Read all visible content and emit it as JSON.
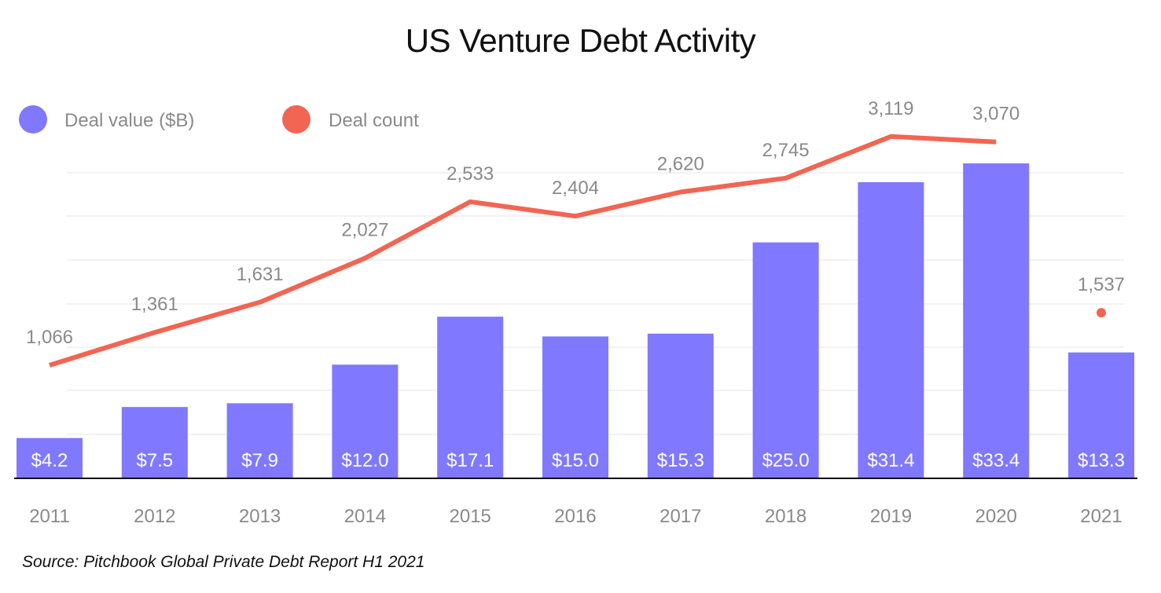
{
  "chart_data": {
    "type": "bar",
    "title": "US Venture Debt Activity",
    "categories": [
      "2011",
      "2012",
      "2013",
      "2014",
      "2015",
      "2016",
      "2017",
      "2018",
      "2019",
      "2020",
      "2021"
    ],
    "series": [
      {
        "name": "Deal value ($B)",
        "kind": "bar",
        "color": "#8079FF",
        "values": [
          4.2,
          7.5,
          7.9,
          12.0,
          17.1,
          15.0,
          15.3,
          25.0,
          31.4,
          33.4,
          13.3
        ],
        "labels": [
          "$4.2",
          "$7.5",
          "$7.9",
          "$12.0",
          "$17.1",
          "$15.0",
          "$15.3",
          "$25.0",
          "$31.4",
          "$33.4",
          "$13.3"
        ]
      },
      {
        "name": "Deal count",
        "kind": "line",
        "color": "#F26552",
        "values": [
          1066,
          1361,
          1631,
          2027,
          2533,
          2404,
          2620,
          2745,
          3119,
          3070,
          1537
        ],
        "labels": [
          "1,066",
          "1,361",
          "1,631",
          "2,027",
          "2,533",
          "2,404",
          "2,620",
          "2,745",
          "3,119",
          "3,070",
          "1,537"
        ],
        "line_through": 10,
        "dot_only": [
          10
        ]
      }
    ],
    "legend_placement": "top-left",
    "grid": true,
    "xlabel": "",
    "ylabel": ""
  },
  "source": "Source: Pitchbook Global Private Debt Report H1 2021"
}
